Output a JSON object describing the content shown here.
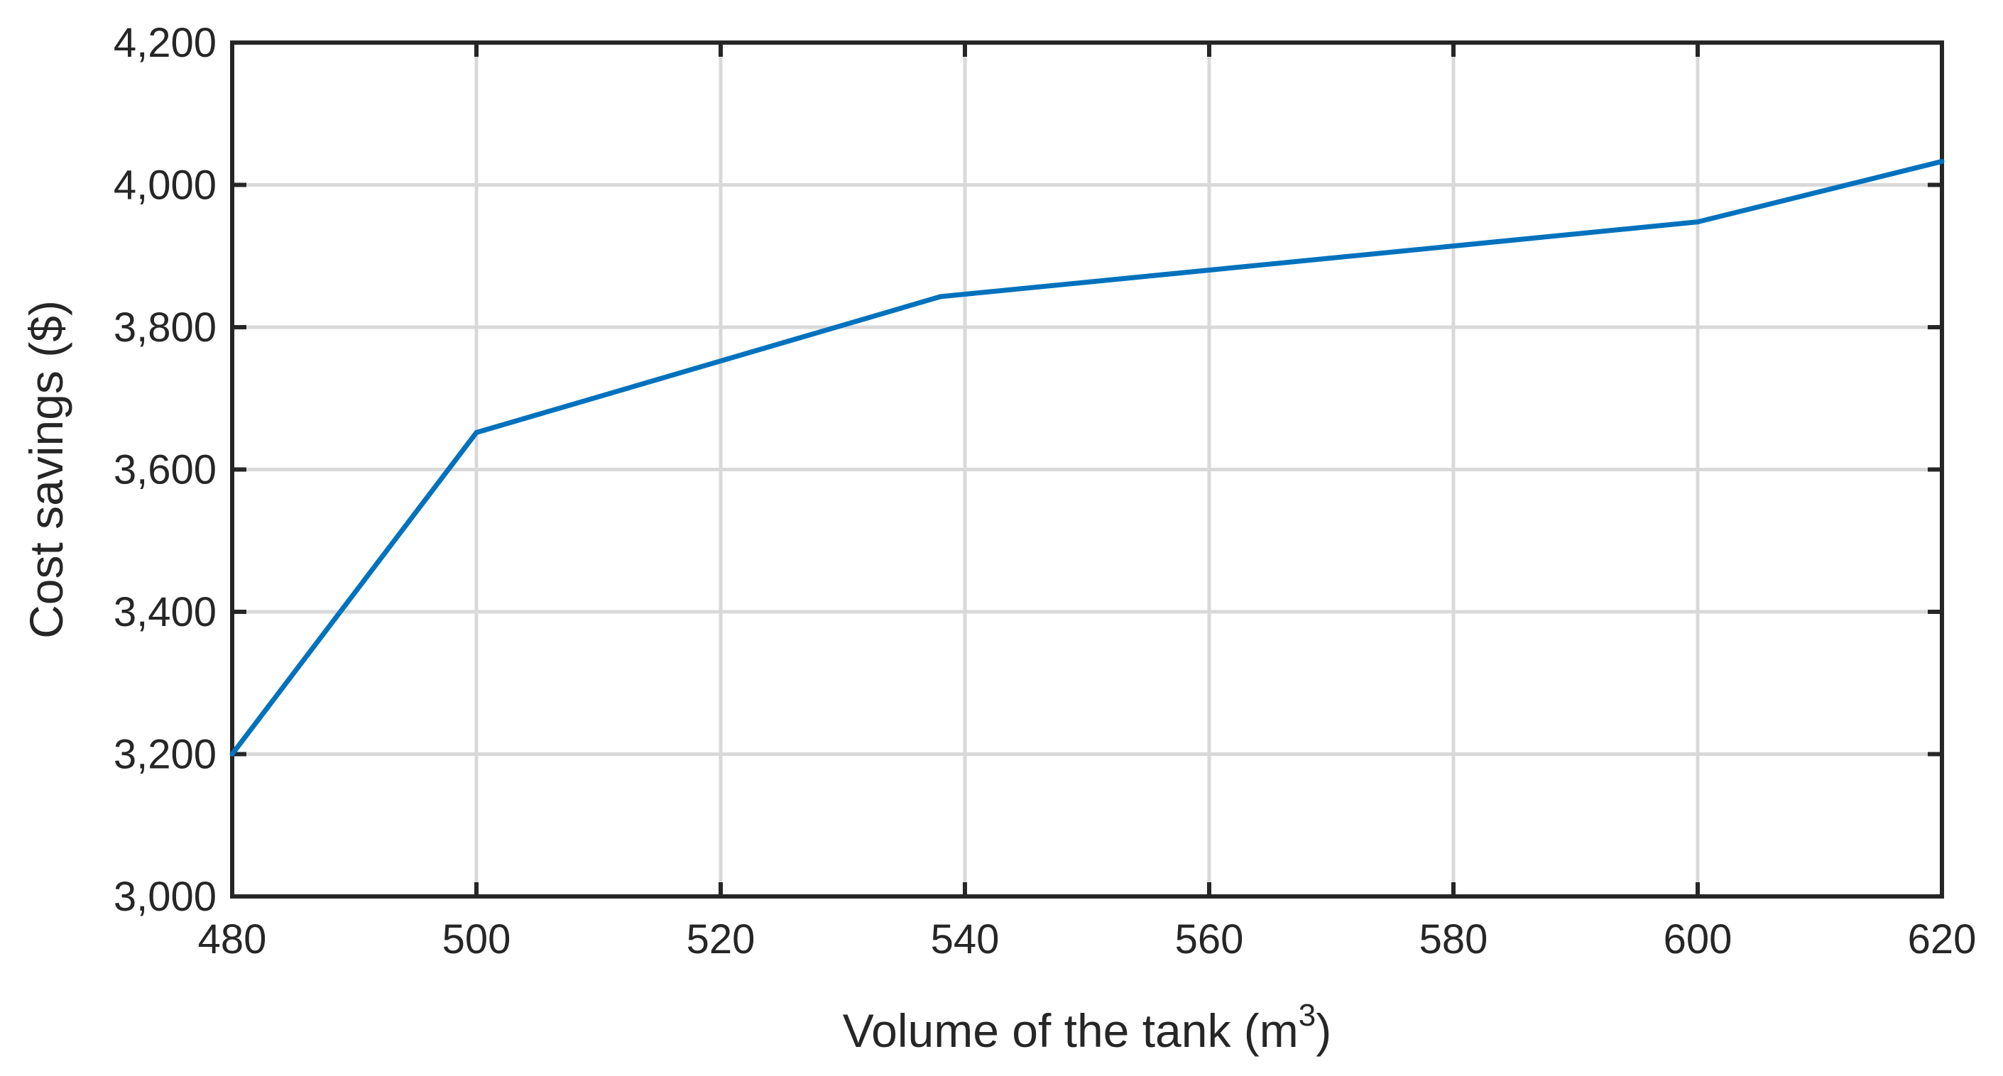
{
  "chart_data": {
    "type": "line",
    "xlabel": "Volume of the tank (m",
    "xlabel_superscript": "3",
    "xlabel_suffix": ")",
    "ylabel": "Cost savings ($)",
    "xlim": [
      480,
      620
    ],
    "ylim": [
      3000,
      4200
    ],
    "xticks": [
      480,
      500,
      520,
      540,
      560,
      580,
      600,
      620
    ],
    "xtick_labels": [
      "480",
      "500",
      "520",
      "540",
      "560",
      "580",
      "600",
      "620"
    ],
    "yticks": [
      3000,
      3200,
      3400,
      3600,
      3800,
      4000,
      4200
    ],
    "ytick_labels": [
      "3,000",
      "3,200",
      "3,400",
      "3,600",
      "3,800",
      "4,000",
      "4,200"
    ],
    "grid": true,
    "series": [
      {
        "color": "#0072bd",
        "x": [
          480,
          500,
          538,
          600,
          620
        ],
        "y": [
          3200,
          3652,
          3843,
          3948,
          4033
        ]
      }
    ]
  }
}
